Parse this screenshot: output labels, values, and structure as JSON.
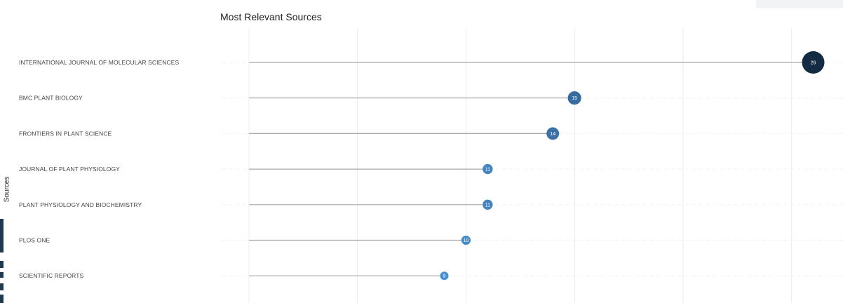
{
  "chart_data": {
    "type": "lollipop",
    "title": "Most Relevant Sources",
    "ylabel": "Sources",
    "categories": [
      "INTERNATIONAL JOURNAL OF MOLECULAR SCIENCES",
      "BMC PLANT BIOLOGY",
      "FRONTIERS IN PLANT SCIENCE",
      "JOURNAL OF PLANT PHYSIOLOGY",
      "PLANT PHYSIOLOGY AND BIOCHEMISTRY",
      "PLOS ONE",
      "SCIENTIFIC REPORTS"
    ],
    "values": [
      26,
      15,
      14,
      11,
      11,
      10,
      9
    ],
    "xlim": [
      0,
      26.5
    ],
    "grid": true,
    "colors": {
      "high": "#132b43",
      "mid": "#2c6aa6",
      "low": "#4a90d0",
      "segment": "#a8a8a8",
      "grid": "#ececec"
    }
  }
}
